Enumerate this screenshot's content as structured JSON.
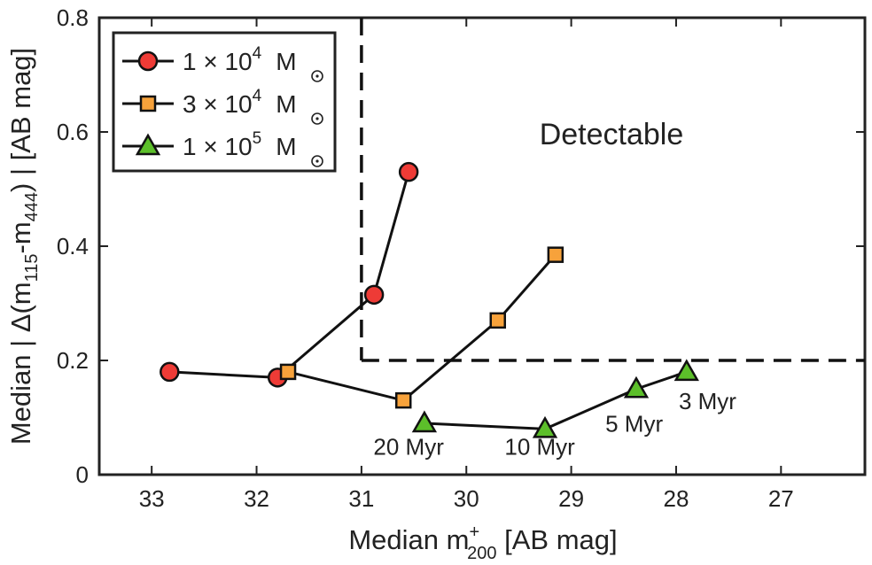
{
  "chart_data": {
    "type": "line",
    "xlabel": "Median  m",
    "xlabel_sup": "+",
    "xlabel_sub": "200",
    "xlabel_suffix": "  [AB  mag]",
    "ylabel_prefix": "Median | Δ(m",
    "ylabel_sub1": "115",
    "ylabel_mid": "-m",
    "ylabel_sub2": "444",
    "ylabel_suffix": ") |  [AB  mag]",
    "xlim": [
      33.5,
      26.2
    ],
    "ylim": [
      0,
      0.8
    ],
    "xticks": [
      33,
      32,
      31,
      30,
      29,
      28,
      27
    ],
    "yticks": [
      0,
      0.2,
      0.4,
      0.6,
      0.8
    ],
    "ytick_labels": [
      "0",
      "0.2",
      "0.4",
      "0.6",
      "0.8"
    ],
    "series": [
      {
        "name": "1 × 10^4 Msun",
        "label_coef": "1 × 10",
        "label_exp": "4",
        "label_unit": "M",
        "marker": "circle",
        "color": "#ee3b36",
        "x": [
          32.83,
          31.8,
          30.88,
          30.55
        ],
        "y": [
          0.18,
          0.17,
          0.315,
          0.53
        ]
      },
      {
        "name": "3 × 10^4 Msun",
        "label_coef": "3 × 10",
        "label_exp": "4",
        "label_unit": "M",
        "marker": "square",
        "color": "#f7a23b",
        "x": [
          31.7,
          30.6,
          29.7,
          29.15
        ],
        "y": [
          0.18,
          0.13,
          0.27,
          0.385
        ]
      },
      {
        "name": "1 × 10^5 Msun",
        "label_coef": "1 × 10",
        "label_exp": "5",
        "label_unit": "M",
        "marker": "triangle",
        "color": "#5cbf2a",
        "x": [
          30.4,
          29.25,
          28.38,
          27.9
        ],
        "y": [
          0.09,
          0.08,
          0.15,
          0.18
        ]
      }
    ],
    "detectable_threshold": {
      "x": 31,
      "y": 0.2
    },
    "region_label": "Detectable",
    "annotations": [
      {
        "text": "20 Myr",
        "x": 30.55,
        "y": 0.035
      },
      {
        "text": "10 Myr",
        "x": 29.3,
        "y": 0.035
      },
      {
        "text": "5 Myr",
        "x": 28.4,
        "y": 0.075
      },
      {
        "text": "3 Myr",
        "x": 27.7,
        "y": 0.115
      }
    ],
    "legend_position": "top-left"
  }
}
